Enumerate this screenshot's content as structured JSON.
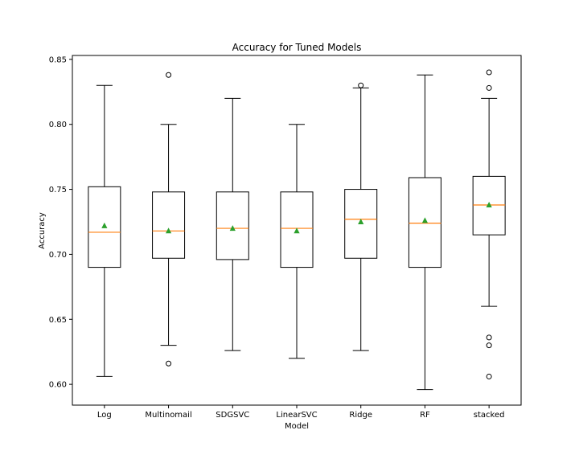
{
  "chart_data": {
    "type": "box",
    "title": "Accuracy for Tuned Models",
    "xlabel": "Model",
    "ylabel": "Accuracy",
    "ylim": [
      0.584,
      0.853
    ],
    "yticks": [
      0.6,
      0.65,
      0.7,
      0.75,
      0.8,
      0.85
    ],
    "ytick_labels": [
      "0.60",
      "0.65",
      "0.70",
      "0.75",
      "0.80",
      "0.85"
    ],
    "grid": false,
    "colors": {
      "box": "#000000",
      "median": "#ff7f0e",
      "mean": "#2ca02c",
      "flier": "#000000"
    },
    "categories": [
      "Log",
      "Multinomail",
      "SDGSVC",
      "LinearSVC",
      "Ridge",
      "RF",
      "stacked"
    ],
    "boxes": [
      {
        "whislo": 0.606,
        "q1": 0.69,
        "med": 0.717,
        "q3": 0.752,
        "whishi": 0.83,
        "mean": 0.722,
        "fliers": []
      },
      {
        "whislo": 0.63,
        "q1": 0.697,
        "med": 0.718,
        "q3": 0.748,
        "whishi": 0.8,
        "mean": 0.718,
        "fliers": [
          0.838,
          0.616
        ]
      },
      {
        "whislo": 0.626,
        "q1": 0.696,
        "med": 0.72,
        "q3": 0.748,
        "whishi": 0.82,
        "mean": 0.72,
        "fliers": []
      },
      {
        "whislo": 0.62,
        "q1": 0.69,
        "med": 0.72,
        "q3": 0.748,
        "whishi": 0.8,
        "mean": 0.718,
        "fliers": []
      },
      {
        "whislo": 0.626,
        "q1": 0.697,
        "med": 0.727,
        "q3": 0.75,
        "whishi": 0.828,
        "mean": 0.725,
        "fliers": [
          0.83
        ]
      },
      {
        "whislo": 0.596,
        "q1": 0.69,
        "med": 0.724,
        "q3": 0.759,
        "whishi": 0.838,
        "mean": 0.726,
        "fliers": []
      },
      {
        "whislo": 0.66,
        "q1": 0.715,
        "med": 0.738,
        "q3": 0.76,
        "whishi": 0.82,
        "mean": 0.738,
        "fliers": [
          0.84,
          0.828,
          0.636,
          0.63,
          0.606
        ]
      }
    ]
  }
}
